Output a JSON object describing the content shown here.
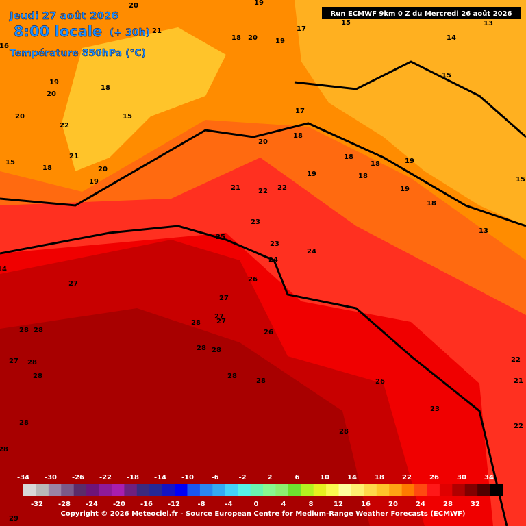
{
  "header": {
    "date": "Jeudi 27 août 2026",
    "time": "8:00 locale",
    "lead": "(+ 30h)",
    "parameter": "Température 850hPa (°C)",
    "run": "Run ECMWF 9km 0 Z du Mercredi 26 août 2026"
  },
  "map": {
    "labels": [
      20,
      19,
      21,
      18,
      20,
      19,
      17,
      15,
      13,
      14,
      15,
      16,
      19,
      20,
      18,
      15,
      20,
      22,
      21,
      19,
      20,
      18,
      15,
      17,
      18,
      20,
      19,
      18,
      18,
      19,
      18,
      19,
      18,
      13,
      21,
      22,
      22,
      23,
      25,
      23,
      24,
      24,
      26,
      27,
      27,
      28,
      28,
      28,
      27,
      27,
      26,
      28,
      28,
      27,
      28,
      28,
      28,
      28,
      26,
      23,
      28,
      28,
      28,
      22,
      22,
      21,
      15,
      14,
      29
    ]
  },
  "legend": {
    "colors": [
      "#d8d8d8",
      "#b8b8b8",
      "#9a84a6",
      "#7a5a8a",
      "#5a2c6a",
      "#6e1478",
      "#8e1a98",
      "#a81eb0",
      "#6e2080",
      "#3a2a7e",
      "#262896",
      "#1414c4",
      "#0000f8",
      "#1a56f0",
      "#2a86f0",
      "#34aaf2",
      "#44d2f8",
      "#56f2e8",
      "#6af4b0",
      "#88f890",
      "#8cf070",
      "#6ee030",
      "#b4f020",
      "#e6f020",
      "#fafa50",
      "#ffff9c",
      "#fff070",
      "#ffd84a",
      "#ffc42a",
      "#ffa414",
      "#ff7a00",
      "#ff4a10",
      "#ff1818",
      "#e00000",
      "#b00000",
      "#800000",
      "#500000",
      "#000000"
    ],
    "top_ticks": [
      -34,
      -30,
      -26,
      -22,
      -18,
      -14,
      -10,
      -6,
      -2,
      2,
      6,
      10,
      14,
      18,
      22,
      26,
      30,
      34
    ],
    "bottom_ticks": [
      -32,
      -28,
      -24,
      -20,
      -16,
      -12,
      -8,
      -4,
      0,
      4,
      8,
      12,
      16,
      20,
      24,
      28,
      32
    ]
  },
  "footer": {
    "copyright": "Copyright © 2026 Meteociel.fr - Source European Centre for Medium-Range Weather Forecasts (ECMWF)"
  }
}
